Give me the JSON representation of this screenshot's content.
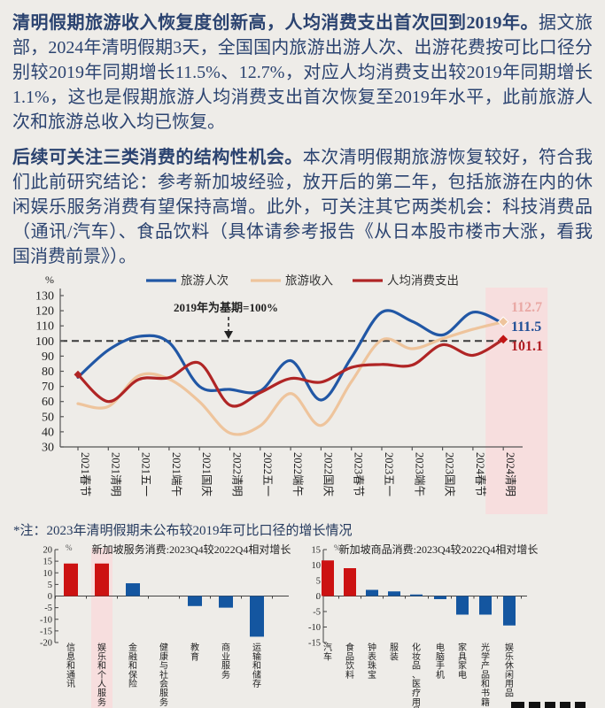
{
  "page": {
    "background": "#eeece8",
    "text_color": "#2b4370",
    "highlight_pink": "#f7dede"
  },
  "paragraphs": [
    {
      "lead": "清明假期旅游收入恢复度创新高，人均消费支出首次回到2019年。",
      "body": "据文旅部，2024年清明假期3天，全国国内旅游出游人次、出游花费按可比口径分别较2019年同期增长11.5%、12.7%，对应人均消费支出较2019年同期增长1.1%，这也是假期旅游人均消费支出首次恢复至2019年水平，此前旅游人次和旅游总收入均已恢复。"
    },
    {
      "lead": "后续可关注三类消费的结构性机会。",
      "body": "本次清明假期旅游恢复较好，符合我们此前研究结论：参考新加坡经验，放开后的第二年，包括旅游在内的休闲娱乐服务消费有望保持高增。此外，可关注其它两类机会：科技消费品（通讯/汽车）、食品饮料（具体请参考报告《从日本股市楼市大涨，看我国消费前景》）。"
    }
  ],
  "note": "*注：2023年清明假期未公布较2019年可比口径的增长情况",
  "chart_data": [
    {
      "type": "line",
      "unit": "%",
      "annotation": "2019年为基期=100%",
      "baseline_value": 100,
      "ylim": [
        30,
        130
      ],
      "ytick_step": 10,
      "grid": false,
      "legend_position": "top",
      "highlight_last_category": true,
      "categories": [
        "2021春节",
        "2021清明",
        "2021五一",
        "2021端午",
        "2021国庆",
        "2022清明",
        "2022五一",
        "2022端午",
        "2022国庆",
        "2023春节",
        "2023五一",
        "2023端午",
        "2023国庆",
        "2024春节",
        "2024清明"
      ],
      "series": [
        {
          "name": "旅游人次",
          "color": "#2157a5",
          "end_label": "111.5",
          "end_label_color": "#1f4e96",
          "values": [
            76,
            94,
            103,
            99,
            70,
            68,
            67,
            87,
            61,
            89,
            119,
            113,
            104,
            119,
            111.5
          ]
        },
        {
          "name": "旅游收入",
          "color": "#eec49c",
          "end_label": "112.7",
          "end_label_color": "#e9a8a4",
          "values": [
            58.6,
            56.7,
            77,
            74.8,
            59.9,
            39.2,
            44,
            65.3,
            44.2,
            73.1,
            100.7,
            94.9,
            101.5,
            107.7,
            112.7
          ]
        },
        {
          "name": "人均消费支出",
          "color": "#b02525",
          "end_label": "101.1",
          "end_label_color": "#b01c22",
          "values": [
            77.8,
            60,
            74.6,
            75.8,
            85.4,
            57.6,
            65.9,
            75.2,
            72.8,
            82.5,
            84.5,
            84.1,
            97.5,
            90.5,
            101.1
          ]
        }
      ]
    },
    {
      "type": "bar",
      "title": "新加坡服务消费:2023Q4较2022Q4相对增长",
      "unit": "%",
      "ylim": [
        -20,
        20
      ],
      "ytick_step": 5,
      "highlight_index": 1,
      "categories": [
        "信息和通讯",
        "娱乐和个人服务",
        "金融和保险",
        "健康与社会服务",
        "教育",
        "商业服务",
        "运输和储存"
      ],
      "values": [
        14,
        14,
        5.5,
        0,
        -4.3,
        -5,
        -17.5
      ],
      "bar_colors": [
        "#cc1212",
        "#cc1212",
        "#1456a0",
        "#1456a0",
        "#1456a0",
        "#1456a0",
        "#1456a0"
      ]
    },
    {
      "type": "bar",
      "title": "新加坡商品消费:2023Q4较2022Q4相对增长",
      "unit": "%",
      "ylim": [
        -15,
        15
      ],
      "ytick_step": 5,
      "highlight_index": null,
      "categories": [
        "汽车",
        "食品饮料",
        "钟表珠宝",
        "服装",
        "化妆品、医疗用品",
        "电脑手机",
        "家具家电",
        "光学产品和书籍",
        "娱乐休闲用品"
      ],
      "values": [
        11.5,
        9,
        2,
        1.5,
        0.5,
        -1,
        -6,
        -6,
        -9.5
      ],
      "bar_colors": [
        "#cc1212",
        "#cc1212",
        "#1456a0",
        "#1456a0",
        "#1456a0",
        "#1456a0",
        "#1456a0",
        "#1456a0",
        "#1456a0"
      ]
    }
  ],
  "watermark": {
    "description": "cropped black logo marks at bottom-right edge"
  }
}
